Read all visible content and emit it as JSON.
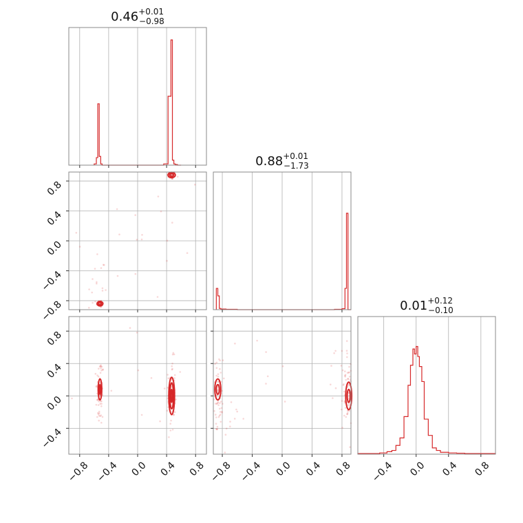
{
  "chart_data": {
    "type": "corner",
    "color": "#d62728",
    "params": [
      {
        "median": "0.46",
        "plus": "+0.01",
        "minus": "−0.98",
        "range": [
          -0.95,
          0.95
        ]
      },
      {
        "median": "0.88",
        "plus": "+0.01",
        "minus": "−1.73",
        "range": [
          -0.92,
          0.92
        ]
      },
      {
        "median": "0.01",
        "plus": "+0.12",
        "minus": "−0.10",
        "range": [
          -0.72,
          0.98
        ]
      }
    ],
    "ticks": [
      {
        "values": [
          -0.8,
          -0.4,
          0.0,
          0.4,
          0.8
        ],
        "labels": [
          "−0.8",
          "−0.4",
          "0.0",
          "0.4",
          "0.8"
        ]
      },
      {
        "values": [
          -0.8,
          -0.4,
          0.0,
          0.4,
          0.8
        ],
        "labels": [
          "−0.8",
          "−0.4",
          "0.0",
          "0.4",
          "0.8"
        ]
      },
      {
        "values": [
          -0.4,
          0.0,
          0.4,
          0.8
        ],
        "labels": [
          "−0.4",
          "0.0",
          "0.4",
          "0.8"
        ]
      }
    ],
    "histograms": [
      {
        "edges": [
          -0.6,
          -0.57,
          -0.55,
          -0.53,
          -0.51,
          -0.49,
          -0.47,
          0.36,
          0.42,
          0.44,
          0.46,
          0.48,
          0.5,
          0.52,
          0.55,
          0.6
        ],
        "counts": [
          0.01,
          0.06,
          0.49,
          0.07,
          0.01,
          0,
          0,
          0.01,
          0.55,
          0.55,
          1.0,
          0.04,
          0.01,
          0.005,
          0
        ]
      },
      {
        "edges": [
          -0.88,
          -0.86,
          -0.84,
          -0.82,
          -0.8,
          -0.75,
          -0.7,
          -0.6,
          -0.55,
          0.7,
          0.8,
          0.84,
          0.86,
          0.88,
          0.92
        ],
        "counts": [
          0.17,
          0.11,
          0.01,
          0.005,
          0.005,
          0.003,
          0.003,
          0,
          0,
          0.003,
          0.008,
          0.17,
          0.77,
          0
        ]
      },
      {
        "edges": [
          -0.72,
          -0.45,
          -0.36,
          -0.3,
          -0.25,
          -0.2,
          -0.15,
          -0.1,
          -0.07,
          -0.04,
          -0.02,
          0.0,
          0.02,
          0.04,
          0.07,
          0.1,
          0.15,
          0.2,
          0.25,
          0.3,
          0.4,
          0.5,
          0.6,
          0.8,
          0.98
        ],
        "counts": [
          0.005,
          0.01,
          0.02,
          0.03,
          0.07,
          0.13,
          0.3,
          0.55,
          0.71,
          0.84,
          0.8,
          0.86,
          0.78,
          0.7,
          0.58,
          0.28,
          0.15,
          0.05,
          0.03,
          0.015,
          0.01,
          0.008,
          0.005,
          0.005
        ]
      }
    ],
    "scatter": [
      {
        "row": 1,
        "col": 0,
        "clusters": [
          {
            "x": 0.47,
            "y": 0.88,
            "sx": 0.03,
            "sy": 0.03,
            "n": 55
          },
          {
            "x": -0.52,
            "y": -0.84,
            "sx": 0.025,
            "sy": 0.025,
            "n": 45
          },
          {
            "x": -0.55,
            "y": -0.55,
            "sx": 0.1,
            "sy": 0.25,
            "n": 15
          },
          {
            "x": 0.0,
            "y": 0.0,
            "sx": 0.55,
            "sy": 0.55,
            "n": 20
          }
        ]
      },
      {
        "row": 2,
        "col": 0,
        "clusters": [
          {
            "x": -0.52,
            "y": 0.05,
            "sx": 0.025,
            "sy": 0.22,
            "n": 70
          },
          {
            "x": 0.47,
            "y": 0.0,
            "sx": 0.025,
            "sy": 0.22,
            "n": 80
          },
          {
            "x": 0.0,
            "y": 0.1,
            "sx": 0.5,
            "sy": 0.4,
            "n": 15
          }
        ]
      },
      {
        "row": 2,
        "col": 1,
        "clusters": [
          {
            "x": -0.85,
            "y": 0.05,
            "sx": 0.03,
            "sy": 0.2,
            "n": 55
          },
          {
            "x": 0.87,
            "y": 0.0,
            "sx": 0.04,
            "sy": 0.22,
            "n": 65
          },
          {
            "x": -0.7,
            "y": -0.35,
            "sx": 0.08,
            "sy": 0.15,
            "n": 12
          },
          {
            "x": 0.75,
            "y": 0.35,
            "sx": 0.08,
            "sy": 0.15,
            "n": 12
          },
          {
            "x": 0.0,
            "y": 0.2,
            "sx": 0.5,
            "sy": 0.3,
            "n": 12
          }
        ]
      }
    ],
    "contours": [
      {
        "row": 1,
        "col": 0,
        "ellipses": [
          {
            "x": 0.47,
            "y": 0.88,
            "rx": 0.025,
            "ry": 0.02
          },
          {
            "x": 0.47,
            "y": 0.88,
            "rx": 0.05,
            "ry": 0.035
          },
          {
            "x": -0.52,
            "y": -0.84,
            "rx": 0.02,
            "ry": 0.02
          },
          {
            "x": -0.52,
            "y": -0.84,
            "rx": 0.04,
            "ry": 0.03
          }
        ]
      },
      {
        "row": 2,
        "col": 0,
        "ellipses": [
          {
            "x": -0.52,
            "y": 0.08,
            "rx": 0.01,
            "ry": 0.06
          },
          {
            "x": -0.52,
            "y": 0.08,
            "rx": 0.025,
            "ry": 0.13
          },
          {
            "x": 0.47,
            "y": 0.0,
            "rx": 0.01,
            "ry": 0.08
          },
          {
            "x": 0.47,
            "y": 0.0,
            "rx": 0.025,
            "ry": 0.16
          },
          {
            "x": 0.47,
            "y": 0.0,
            "rx": 0.04,
            "ry": 0.23
          }
        ]
      },
      {
        "row": 2,
        "col": 1,
        "ellipses": [
          {
            "x": -0.86,
            "y": 0.08,
            "rx": 0.02,
            "ry": 0.06
          },
          {
            "x": -0.86,
            "y": 0.08,
            "rx": 0.04,
            "ry": 0.13
          },
          {
            "x": 0.89,
            "y": 0.0,
            "rx": 0.02,
            "ry": 0.08
          },
          {
            "x": 0.89,
            "y": 0.0,
            "rx": 0.04,
            "ry": 0.17
          }
        ]
      }
    ]
  }
}
